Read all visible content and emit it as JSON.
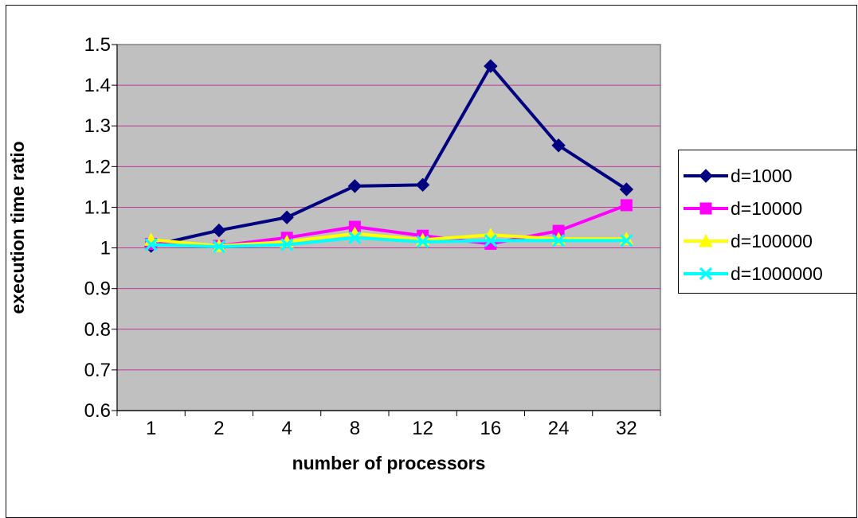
{
  "chart_data": {
    "type": "line",
    "title": "",
    "xlabel": "number of processors",
    "ylabel": "execution time ratio",
    "categories": [
      "1",
      "2",
      "4",
      "8",
      "12",
      "16",
      "24",
      "32"
    ],
    "ylim": [
      0.6,
      1.5
    ],
    "yticks": [
      0.6,
      0.7,
      0.8,
      0.9,
      1,
      1.1,
      1.2,
      1.3,
      1.4,
      1.5
    ],
    "grid": true,
    "legend_position": "right",
    "plot_background": "#c0c0c0",
    "grid_color": "#c0399a",
    "series": [
      {
        "name": "d=1000",
        "color": "#000080",
        "marker": "diamond",
        "values": [
          1.005,
          1.043,
          1.075,
          1.152,
          1.155,
          1.447,
          1.252,
          1.144
        ]
      },
      {
        "name": "d=10000",
        "color": "#ff00ff",
        "marker": "square",
        "values": [
          1.01,
          1.005,
          1.025,
          1.052,
          1.03,
          1.01,
          1.042,
          1.105
        ]
      },
      {
        "name": "d=100000",
        "color": "#ffff00",
        "marker": "triangle",
        "values": [
          1.02,
          1.005,
          1.015,
          1.035,
          1.02,
          1.032,
          1.022,
          1.022
        ]
      },
      {
        "name": "d=1000000",
        "color": "#00ffff",
        "marker": "x",
        "values": [
          1.008,
          1.003,
          1.008,
          1.025,
          1.015,
          1.018,
          1.018,
          1.018
        ]
      }
    ]
  }
}
